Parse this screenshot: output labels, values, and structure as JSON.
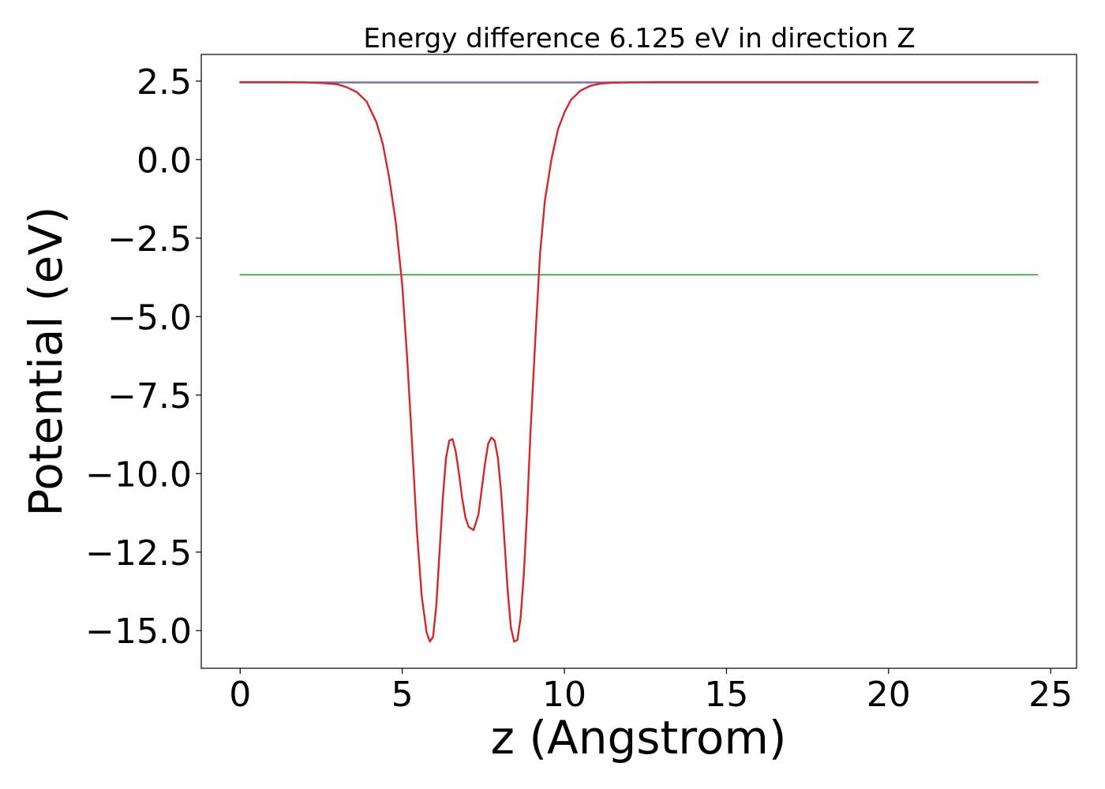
{
  "chart_data": {
    "type": "line",
    "title": "Energy difference 6.125 eV in direction Z",
    "xlabel": "z (Angstrom)",
    "ylabel": "Potential (eV)",
    "xlim": [
      -1.2,
      25.8
    ],
    "ylim": [
      -16.2,
      3.35
    ],
    "xticks": [
      0,
      5,
      10,
      15,
      20,
      25
    ],
    "xtick_labels": [
      "0",
      "5",
      "10",
      "15",
      "20",
      "25"
    ],
    "yticks": [
      2.5,
      0.0,
      -2.5,
      -5.0,
      -7.5,
      -10.0,
      -12.5,
      -15.0
    ],
    "ytick_labels": [
      "2.5",
      "0.0",
      "−2.5",
      "−5.0",
      "−7.5",
      "−10.0",
      "−12.5",
      "−15.0"
    ],
    "grid": false,
    "legend": "none",
    "series": [
      {
        "color": "#1f77b4",
        "x": [
          0,
          24.6
        ],
        "y": [
          2.45,
          2.45
        ]
      },
      {
        "color": "#2ca02c",
        "x": [
          0,
          24.6
        ],
        "y": [
          -3.67,
          -3.67
        ]
      },
      {
        "color": "#9467bd",
        "x": [
          0,
          24.6
        ],
        "y": [
          2.47,
          2.47
        ]
      },
      {
        "color": "#d62728",
        "x": [
          0,
          1,
          2,
          2.5,
          3,
          3.3,
          3.6,
          3.9,
          4.2,
          4.4,
          4.6,
          4.8,
          5.0,
          5.15,
          5.3,
          5.45,
          5.6,
          5.75,
          5.85,
          5.95,
          6.05,
          6.15,
          6.25,
          6.35,
          6.45,
          6.55,
          6.65,
          6.75,
          6.85,
          6.95,
          7.05,
          7.2,
          7.35,
          7.45,
          7.55,
          7.65,
          7.75,
          7.85,
          7.95,
          8.05,
          8.15,
          8.25,
          8.35,
          8.45,
          8.55,
          8.65,
          8.75,
          8.85,
          8.95,
          9.1,
          9.25,
          9.4,
          9.6,
          9.8,
          10.0,
          10.2,
          10.5,
          10.8,
          11.1,
          11.5,
          12,
          13,
          15,
          20,
          24.6
        ],
        "y": [
          2.47,
          2.47,
          2.46,
          2.44,
          2.4,
          2.3,
          2.15,
          1.85,
          1.2,
          0.5,
          -0.6,
          -2.0,
          -4.0,
          -6.3,
          -9.0,
          -11.8,
          -13.9,
          -15.05,
          -15.35,
          -15.2,
          -14.2,
          -12.5,
          -10.8,
          -9.5,
          -8.95,
          -8.9,
          -9.3,
          -10.0,
          -10.8,
          -11.4,
          -11.7,
          -11.8,
          -11.3,
          -10.5,
          -9.7,
          -9.05,
          -8.85,
          -8.95,
          -9.5,
          -10.6,
          -12.1,
          -13.7,
          -14.9,
          -15.35,
          -15.3,
          -14.6,
          -13.2,
          -11.2,
          -8.8,
          -5.8,
          -3.0,
          -1.3,
          0.0,
          0.95,
          1.5,
          1.9,
          2.2,
          2.35,
          2.42,
          2.45,
          2.46,
          2.47,
          2.47,
          2.47,
          2.47
        ]
      }
    ]
  }
}
